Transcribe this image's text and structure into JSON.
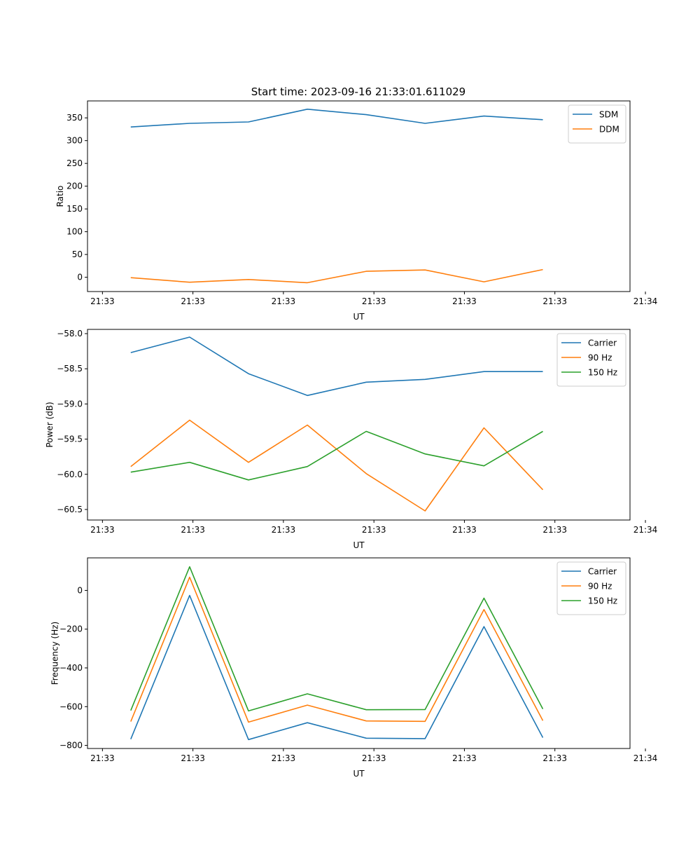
{
  "figure_title": "Start time: 2023-09-16 21:33:01.611029",
  "chart_data": [
    {
      "type": "line",
      "title": "Start time: 2023-09-16 21:33:01.611029",
      "xlabel": "UT",
      "ylabel": "Ratio",
      "x": [
        0,
        1,
        2,
        3,
        4,
        5,
        6,
        7
      ],
      "xlim": [
        -0.735,
        8.481
      ],
      "ylim": [
        -31.4,
        387.2
      ],
      "xticks": [
        -0.481,
        1.056,
        2.593,
        4.131,
        5.668,
        7.205,
        8.743
      ],
      "xtick_labels": [
        "21:33",
        "21:33",
        "21:33",
        "21:33",
        "21:33",
        "21:33",
        "21:34"
      ],
      "yticks": [
        0,
        50,
        100,
        150,
        200,
        250,
        300,
        350
      ],
      "ytick_labels": [
        "0",
        "50",
        "100",
        "150",
        "200",
        "250",
        "300",
        "350"
      ],
      "legend": "upper right",
      "series": [
        {
          "name": "SDM",
          "color": "#1f77b4",
          "values": [
            330,
            338,
            341,
            369,
            357,
            338,
            354,
            346
          ]
        },
        {
          "name": "DDM",
          "color": "#ff7f0e",
          "values": [
            -1,
            -11,
            -5,
            -12,
            13,
            16,
            -10,
            17
          ]
        }
      ]
    },
    {
      "type": "line",
      "title": "",
      "xlabel": "UT",
      "ylabel": "Power (dB)",
      "x": [
        0,
        1,
        2,
        3,
        4,
        5,
        6,
        7
      ],
      "xlim": [
        -0.735,
        8.481
      ],
      "ylim": [
        -60.65,
        -57.94
      ],
      "xticks": [
        -0.481,
        1.056,
        2.593,
        4.131,
        5.668,
        7.205,
        8.743
      ],
      "xtick_labels": [
        "21:33",
        "21:33",
        "21:33",
        "21:33",
        "21:33",
        "21:33",
        "21:34"
      ],
      "yticks": [
        -58.0,
        -58.5,
        -59.0,
        -59.5,
        -60.0,
        -60.5
      ],
      "ytick_labels": [
        "−58.0",
        "−58.5",
        "−59.0",
        "−59.5",
        "−60.0",
        "−60.5"
      ],
      "legend": "upper right",
      "series": [
        {
          "name": "Carrier",
          "color": "#1f77b4",
          "values": [
            -58.27,
            -58.05,
            -58.57,
            -58.88,
            -58.69,
            -58.65,
            -58.54,
            -58.54
          ]
        },
        {
          "name": "90 Hz",
          "color": "#ff7f0e",
          "values": [
            -59.89,
            -59.23,
            -59.83,
            -59.3,
            -59.99,
            -60.52,
            -59.34,
            -60.22
          ]
        },
        {
          "name": "150 Hz",
          "color": "#2ca02c",
          "values": [
            -59.97,
            -59.83,
            -60.08,
            -59.89,
            -59.39,
            -59.71,
            -59.88,
            -59.39
          ]
        }
      ]
    },
    {
      "type": "line",
      "title": "",
      "xlabel": "UT",
      "ylabel": "Frequency (Hz)",
      "x": [
        0,
        1,
        2,
        3,
        4,
        5,
        6,
        7
      ],
      "xlim": [
        -0.735,
        8.481
      ],
      "ylim": [
        -816,
        168
      ],
      "xticks": [
        -0.481,
        1.056,
        2.593,
        4.131,
        5.668,
        7.205,
        8.743
      ],
      "xtick_labels": [
        "21:33",
        "21:33",
        "21:33",
        "21:33",
        "21:33",
        "21:33",
        "21:34"
      ],
      "yticks": [
        0,
        -200,
        -400,
        -600,
        -800
      ],
      "ytick_labels": [
        "0",
        "−200",
        "−400",
        "−600",
        "−800"
      ],
      "legend": "upper right",
      "series": [
        {
          "name": "Carrier",
          "color": "#1f77b4",
          "values": [
            -768,
            -26,
            -770,
            -683,
            -763,
            -765,
            -187,
            -760
          ]
        },
        {
          "name": "90 Hz",
          "color": "#ff7f0e",
          "values": [
            -677,
            68,
            -680,
            -592,
            -674,
            -676,
            -99,
            -672
          ]
        },
        {
          "name": "150 Hz",
          "color": "#2ca02c",
          "values": [
            -620,
            122,
            -622,
            -534,
            -616,
            -615,
            -40,
            -612
          ]
        }
      ]
    }
  ]
}
